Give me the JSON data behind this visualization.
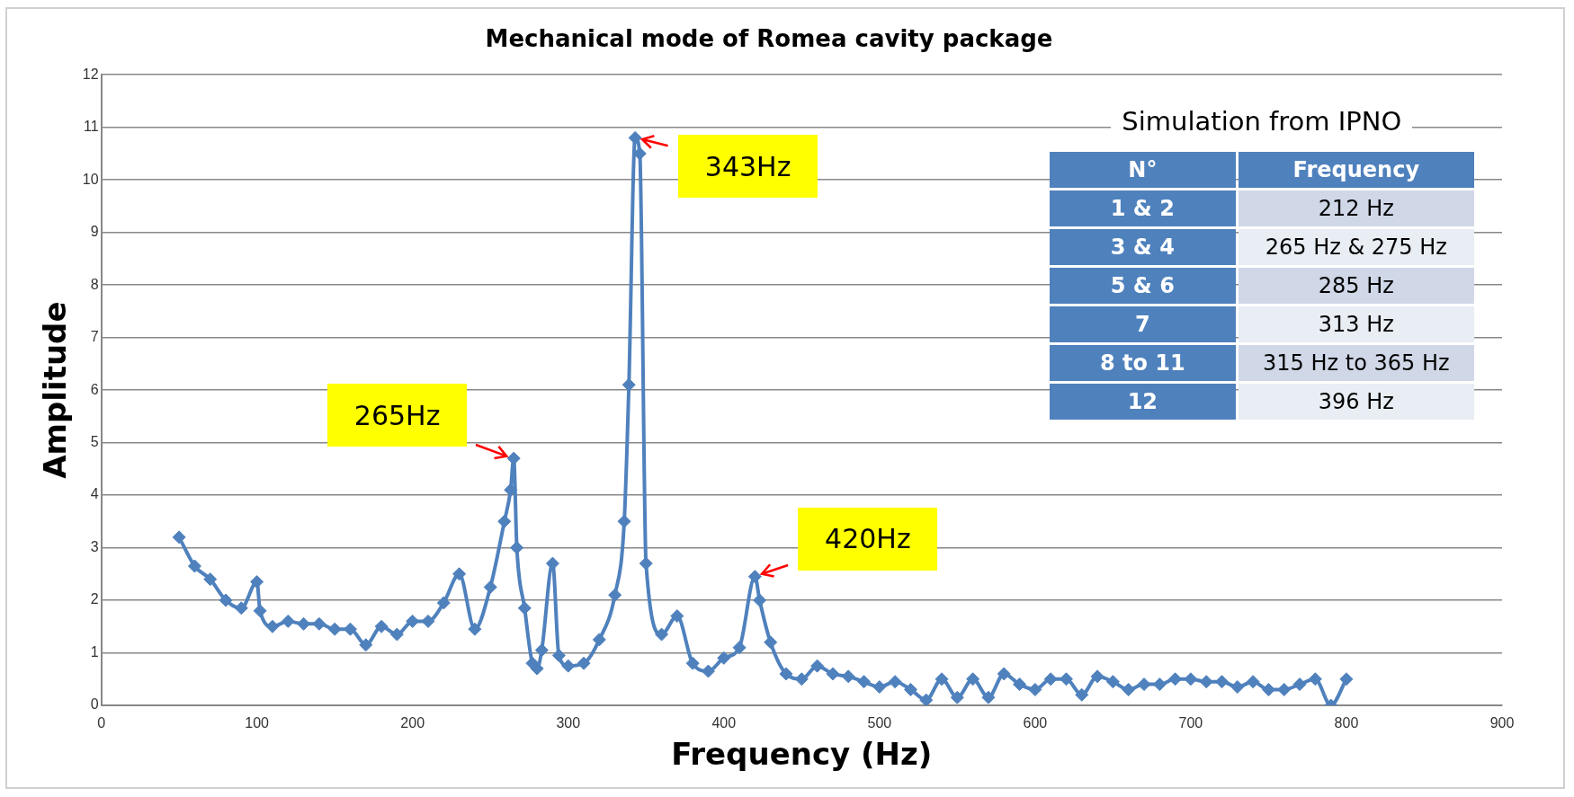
{
  "chart_data": {
    "type": "line",
    "title": "Mechanical mode of Romea cavity package",
    "xlabel": "Frequency (Hz)",
    "ylabel": "Amplitude",
    "x": [
      50,
      60,
      70,
      80,
      90,
      100,
      102,
      110,
      120,
      130,
      140,
      150,
      160,
      170,
      180,
      190,
      200,
      210,
      220,
      230,
      240,
      250,
      259,
      263,
      265,
      267,
      272,
      277,
      280,
      283,
      290,
      294,
      300,
      310,
      320,
      330,
      336,
      339,
      343,
      346,
      350,
      360,
      370,
      380,
      390,
      400,
      410,
      420,
      423,
      430,
      440,
      450,
      460,
      470,
      480,
      490,
      500,
      510,
      520,
      530,
      540,
      550,
      560,
      570,
      580,
      590,
      600,
      610,
      620,
      630,
      640,
      650,
      660,
      670,
      680,
      690,
      700,
      710,
      720,
      730,
      740,
      750,
      760,
      770,
      780,
      790,
      800
    ],
    "series": [
      {
        "color": "#4f81bd",
        "values": [
          3.2,
          2.65,
          2.4,
          2.0,
          1.85,
          2.35,
          1.8,
          1.5,
          1.6,
          1.55,
          1.55,
          1.45,
          1.45,
          1.15,
          1.5,
          1.35,
          1.6,
          1.6,
          1.95,
          2.5,
          1.45,
          2.25,
          3.5,
          4.1,
          4.7,
          3.0,
          1.85,
          0.8,
          0.7,
          1.05,
          2.7,
          0.95,
          0.75,
          0.8,
          1.25,
          2.1,
          3.5,
          6.1,
          10.8,
          10.5,
          2.7,
          1.35,
          1.7,
          0.8,
          0.65,
          0.9,
          1.1,
          2.45,
          2.0,
          1.2,
          0.6,
          0.5,
          0.75,
          0.6,
          0.55,
          0.45,
          0.35,
          0.45,
          0.3,
          0.1,
          0.5,
          0.15,
          0.5,
          0.15,
          0.6,
          0.4,
          0.3,
          0.5,
          0.5,
          0.2,
          0.55,
          0.45,
          0.3,
          0.4,
          0.4,
          0.5,
          0.5,
          0.45,
          0.45,
          0.35,
          0.45,
          0.3,
          0.3,
          0.4,
          0.5,
          0.0,
          0.5
        ]
      }
    ],
    "xlim": [
      0,
      900
    ],
    "xticks": [
      0,
      100,
      200,
      300,
      400,
      500,
      600,
      700,
      800,
      900
    ],
    "ylim": [
      0,
      12
    ],
    "yticks": [
      0,
      1,
      2,
      3,
      4,
      5,
      6,
      7,
      8,
      9,
      10,
      11,
      12
    ],
    "grid": "y",
    "legend": false,
    "marker": "diamond",
    "line_style": "solid",
    "annotations": [
      {
        "text": "265Hz",
        "x": 265,
        "y": 4.7
      },
      {
        "text": "343Hz",
        "x": 343,
        "y": 10.8
      },
      {
        "text": "420Hz",
        "x": 420,
        "y": 2.45
      },
      "Simulation from IPNO",
      "N°",
      "Frequency",
      "1 & 2",
      "212 Hz",
      "3 & 4",
      "265 Hz & 275 Hz",
      "5 & 6",
      "285 Hz",
      "7",
      "313 Hz",
      "8 to 11",
      "315 Hz to 365 Hz",
      "12",
      "396 Hz"
    ]
  }
}
